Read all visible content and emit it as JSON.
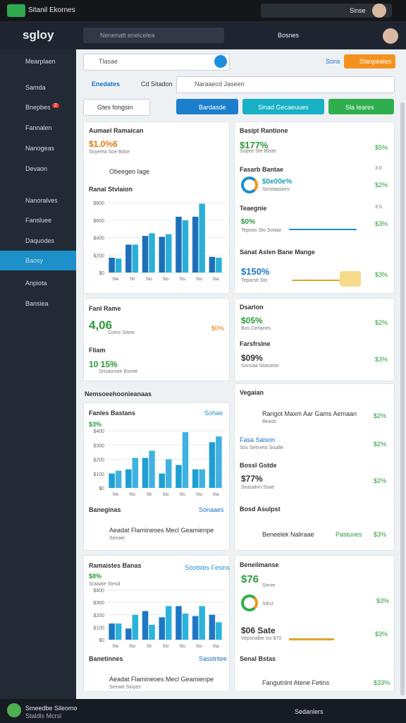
{
  "topbar": {
    "title": "Sitanil Ekornes",
    "user": "Sinse"
  },
  "header": {
    "logo": "sgloy",
    "search": "Nenenatt eneicelea",
    "action": "Bosnes"
  },
  "sidebar": {
    "items": [
      "Mearplaen",
      "Samda",
      "Bnepbes",
      "Fannalen",
      "Nanogeas",
      "Devaon",
      "Nanoralves",
      "Fansluee",
      "Daquodes",
      "Baosy",
      "Anpiota",
      "Bansiea"
    ],
    "badge": "2"
  },
  "toolbar": {
    "dropdown": "Tlasae",
    "link": "Sons",
    "button": "Stanpeates",
    "tabs": [
      "Enedates",
      "Cd Sitadon"
    ],
    "search": "Naraaecd Jaseen",
    "filter": "Gtes fongsin",
    "actions": [
      "Bardasde",
      "Sinad Gecaeuues",
      "Sla Ieares"
    ]
  },
  "left": {
    "a": {
      "title": "Aumael Ramaican",
      "value": "$1.0%6",
      "note": "Soyeeta Soe Bdse",
      "tag": "Obeegeo Iage",
      "chart_title": "Ranal Stvlaion"
    },
    "b": {
      "title": "Fanl Rame",
      "value": "4,06",
      "note": "Cotns Siteer",
      "pct": "$0%",
      "title2": "Fliam",
      "value2": "10 15%",
      "note2": "Srtsaonste Bsmte"
    },
    "section": "Nemsoeehoonieanaas",
    "c": {
      "title": "Fanles Bastans",
      "legend": "Sohae",
      "value": "$3%",
      "footer": "Baneginas",
      "footer_btn": "Sonaaes",
      "item": "Aeadat Flamineoes Mecl Geamienpe",
      "item_note": "Seeaie"
    },
    "d": {
      "title": "Ramaistes Banas",
      "legend": "Sootstes Fesins",
      "value": "$8%",
      "note": "Sraaate Stesd",
      "footer": "Banetinnes",
      "footer_btn": "Sasstntee",
      "item": "Aeadat Flamineoes Mecl Geamienpe",
      "item_note": "Seeaie Sioyes"
    }
  },
  "right": {
    "a": [
      {
        "title": "Basipt Rantione",
        "value": "$177%",
        "note": "Sopee Ste Bliste",
        "pct": "$5%"
      },
      {
        "title": "Fasarb Bantae",
        "aside": "3.0",
        "value": "$0e00e%",
        "note": "Sorstaasiors",
        "pct": "$2%"
      },
      {
        "title": "Teaegnie",
        "aside": "3.5",
        "value": "$0%",
        "note": "Tepoas Sto Sotiaa",
        "pct": "$3%"
      },
      {
        "title": "Sanat Aslen Bane Mange",
        "value": "$150%",
        "note": "Teparstt Sto",
        "pct": "$3%"
      }
    ],
    "b": [
      {
        "title": "Dsarlon",
        "value": "$05%",
        "note": "Bos Cerlanes",
        "pct": "$2%"
      },
      {
        "title": "Farsfrslne",
        "value": "$09%",
        "note": "Sorsiaa Slotuetor",
        "pct": "$3%"
      }
    ],
    "c": {
      "title": "Vegaian",
      "rows": [
        {
          "title": "Rangot Maxm Aar Gams Aemaan",
          "note": "Beasb",
          "pct": "$2%"
        },
        {
          "title": "Fasa Salson",
          "note": "Sos Setrvest Sisalle",
          "pct": "$2%"
        },
        {
          "title": "Bossl Gstde",
          "value": "$77%",
          "note": "Seasalnn Ssae",
          "pct": "$2%"
        },
        {
          "title": "Bosd Asulpst",
          "item": "Beneelek Naliraae",
          "badge": "Pastunes",
          "pct": "$3%"
        }
      ]
    },
    "d": {
      "title": "Beneilmanse",
      "value": "$76",
      "note": "Smne",
      "note2": "Sdnz",
      "pct": "$3%",
      "value2": "$06 Sate",
      "note3": "Vepsnalbe Isv $70",
      "pct2": "$3%",
      "title2": "Senal Bstas",
      "item": "Fangutnlnt Atene Fetins",
      "pct3": "$33%"
    }
  },
  "charts": [
    {
      "type": "bar",
      "ylim": [
        0,
        850
      ],
      "yticks": [
        {
          "value": 0,
          "label": "$0"
        },
        {
          "value": 200,
          "label": "$200"
        },
        {
          "value": 400,
          "label": "$400"
        },
        {
          "value": 600,
          "label": "$600"
        },
        {
          "value": 800,
          "label": "$800"
        }
      ],
      "categories": [
        "Ste",
        "Stt",
        "Sto",
        "Sto",
        "Sts",
        "Sto",
        "Sta"
      ],
      "series": [
        {
          "color": "#1f6fb8",
          "values": [
            170,
            320,
            420,
            410,
            640,
            640,
            180
          ]
        },
        {
          "color": "#2ab0d8",
          "values": [
            160,
            320,
            450,
            440,
            600,
            790,
            170
          ]
        }
      ]
    },
    {
      "type": "bar",
      "ylim": [
        0,
        420
      ],
      "yticks": [
        {
          "value": 0,
          "label": "$0"
        },
        {
          "value": 100,
          "label": "$100"
        },
        {
          "value": 200,
          "label": "$200"
        },
        {
          "value": 300,
          "label": "$300"
        },
        {
          "value": 400,
          "label": "$400"
        }
      ],
      "categories": [
        "Ste",
        "Sto",
        "Stt",
        "Sto",
        "Sts",
        "Sto",
        "Sta"
      ],
      "series": [
        {
          "color": "#1d9fd3",
          "values": [
            100,
            130,
            210,
            100,
            160,
            130,
            320
          ]
        },
        {
          "color": "#3fb2e0",
          "values": [
            120,
            210,
            260,
            200,
            390,
            130,
            360
          ]
        }
      ]
    },
    {
      "type": "bar",
      "ylim": [
        0,
        420
      ],
      "yticks": [
        {
          "value": 0,
          "label": "$0"
        },
        {
          "value": 100,
          "label": "$100"
        },
        {
          "value": 200,
          "label": "$200"
        },
        {
          "value": 300,
          "label": "$300"
        },
        {
          "value": 400,
          "label": "$400"
        }
      ],
      "categories": [
        "Ste",
        "Sto",
        "Stt",
        "Sto",
        "Sts",
        "Sto",
        "Sta"
      ],
      "series": [
        {
          "color": "#1f77c4",
          "values": [
            130,
            90,
            230,
            180,
            270,
            190,
            200
          ]
        },
        {
          "color": "#2ab4dc",
          "values": [
            130,
            200,
            120,
            270,
            210,
            270,
            140
          ]
        }
      ]
    }
  ],
  "footer": {
    "user": "Smeedbe Sileomo",
    "sub": "Staldls Mcrsl",
    "status": "Sedanlers"
  }
}
